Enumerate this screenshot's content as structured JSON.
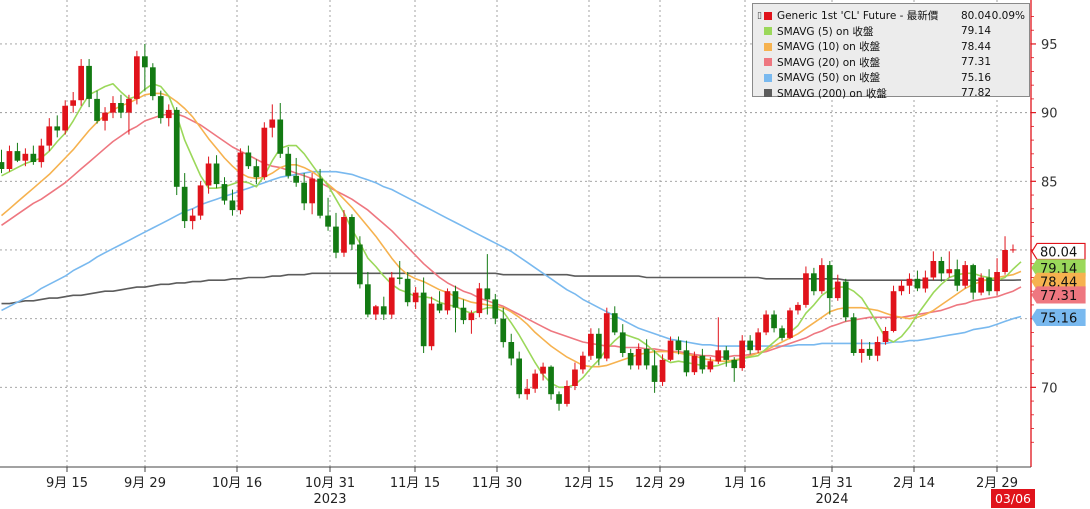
{
  "chart_data": {
    "type": "candlestick",
    "x_tick_labels": [
      "9月 15",
      "9月 29",
      "10月 16",
      "10月 31",
      "11月 15",
      "11月 30",
      "12月 15",
      "12月 29",
      "1月 16",
      "1月 31",
      "2月 14",
      "2月 29"
    ],
    "year_labels": [
      "2023",
      "2024"
    ],
    "date_badge": "03/06",
    "y_ticks": [
      70,
      75,
      80,
      85,
      90,
      95
    ],
    "y_tick_labels": [
      "70",
      "75",
      "80",
      "85",
      "90",
      "95"
    ],
    "ylim": [
      64.2,
      98.2
    ],
    "grid": true,
    "legend_position": "top-right",
    "colors": {
      "up": "#e0131b",
      "down": "#137a13",
      "sma5": "#9bd85a",
      "sma10": "#f6b24f",
      "sma20": "#ee7780",
      "sma50": "#79b9ef",
      "sma200": "#5c5c5c",
      "axis": "#e0131b",
      "grid": "#9a9a9a"
    },
    "legend": [
      {
        "name": "Generic 1st 'CL' Future - 最新價",
        "value": "80.04",
        "change": "0.09%",
        "color": "#e0131b"
      },
      {
        "name": "SMAVG (5)  on 收盤",
        "value": "79.14",
        "change": "",
        "color": "#9bd85a"
      },
      {
        "name": "SMAVG (10)  on 收盤",
        "value": "78.44",
        "change": "",
        "color": "#f6b24f"
      },
      {
        "name": "SMAVG (20)  on 收盤",
        "value": "77.31",
        "change": "",
        "color": "#ee7780"
      },
      {
        "name": "SMAVG (50)  on 收盤",
        "value": "75.16",
        "change": "",
        "color": "#79b9ef"
      },
      {
        "name": "SMAVG (200)  on 收盤",
        "value": "77.82",
        "change": "",
        "color": "#5c5c5c"
      }
    ],
    "price_tags": [
      {
        "label": "80.04",
        "value": 80.04,
        "style": "outline-red"
      },
      {
        "label": "79.14",
        "value": 79.14,
        "style": "green"
      },
      {
        "label": "78.44",
        "value": 78.44,
        "style": "orange"
      },
      {
        "label": "77.31",
        "value": 77.31,
        "style": "pink"
      },
      {
        "label": "75.16",
        "value": 75.16,
        "style": "blue"
      }
    ],
    "candles": [
      [
        86.4,
        87.3,
        85.6,
        85.9
      ],
      [
        85.9,
        87.6,
        85.7,
        87.2
      ],
      [
        87.2,
        87.8,
        86.4,
        86.5
      ],
      [
        86.5,
        87.4,
        86.1,
        87.0
      ],
      [
        87.0,
        87.6,
        86.2,
        86.4
      ],
      [
        86.4,
        88.1,
        86.0,
        87.6
      ],
      [
        87.6,
        89.6,
        87.2,
        89.0
      ],
      [
        89.0,
        89.8,
        88.2,
        88.7
      ],
      [
        88.7,
        90.9,
        88.4,
        90.5
      ],
      [
        90.5,
        91.5,
        90.0,
        90.9
      ],
      [
        90.9,
        93.9,
        90.5,
        93.4
      ],
      [
        93.4,
        93.9,
        90.4,
        91.0
      ],
      [
        91.0,
        91.6,
        89.2,
        89.4
      ],
      [
        89.4,
        90.4,
        88.7,
        90.0
      ],
      [
        90.0,
        91.2,
        89.6,
        90.7
      ],
      [
        90.7,
        91.3,
        89.6,
        90.0
      ],
      [
        90.0,
        91.3,
        88.4,
        91.0
      ],
      [
        91.0,
        94.5,
        90.6,
        94.1
      ],
      [
        94.1,
        95.0,
        91.6,
        93.3
      ],
      [
        93.3,
        93.6,
        90.9,
        91.2
      ],
      [
        91.2,
        91.6,
        89.2,
        89.6
      ],
      [
        89.6,
        90.6,
        89.0,
        90.2
      ],
      [
        90.2,
        90.4,
        84.0,
        84.6
      ],
      [
        84.6,
        85.6,
        81.6,
        82.1
      ],
      [
        82.1,
        83.0,
        81.5,
        82.5
      ],
      [
        82.5,
        85.0,
        82.2,
        84.7
      ],
      [
        84.7,
        86.8,
        84.1,
        86.3
      ],
      [
        86.3,
        86.9,
        84.5,
        84.8
      ],
      [
        84.8,
        85.3,
        83.3,
        83.6
      ],
      [
        83.6,
        84.4,
        82.5,
        82.9
      ],
      [
        82.9,
        87.4,
        82.6,
        87.1
      ],
      [
        87.1,
        87.6,
        85.9,
        86.1
      ],
      [
        86.1,
        86.6,
        84.8,
        85.3
      ],
      [
        85.3,
        89.3,
        85.1,
        88.9
      ],
      [
        88.9,
        90.6,
        88.2,
        89.5
      ],
      [
        89.5,
        90.7,
        86.7,
        87.0
      ],
      [
        87.0,
        87.5,
        85.2,
        85.4
      ],
      [
        85.4,
        86.7,
        84.6,
        84.9
      ],
      [
        84.9,
        85.6,
        82.9,
        83.4
      ],
      [
        83.4,
        85.6,
        82.6,
        85.2
      ],
      [
        85.2,
        85.9,
        82.3,
        82.5
      ],
      [
        82.5,
        83.8,
        81.4,
        81.7
      ],
      [
        81.7,
        82.7,
        79.4,
        79.8
      ],
      [
        79.8,
        82.9,
        79.5,
        82.4
      ],
      [
        82.4,
        82.6,
        80.0,
        80.4
      ],
      [
        80.4,
        81.0,
        77.2,
        77.5
      ],
      [
        77.5,
        78.4,
        75.1,
        75.3
      ],
      [
        75.3,
        76.0,
        74.9,
        75.9
      ],
      [
        75.9,
        76.6,
        74.9,
        75.3
      ],
      [
        75.3,
        78.4,
        75.0,
        78.0
      ],
      [
        78.0,
        79.2,
        77.5,
        77.9
      ],
      [
        77.9,
        78.4,
        75.9,
        76.2
      ],
      [
        76.2,
        77.3,
        75.7,
        76.9
      ],
      [
        76.9,
        78.0,
        72.5,
        73.0
      ],
      [
        73.0,
        76.6,
        72.7,
        76.1
      ],
      [
        76.1,
        77.0,
        75.4,
        75.6
      ],
      [
        75.6,
        77.2,
        75.3,
        77.0
      ],
      [
        77.0,
        77.4,
        74.0,
        75.8
      ],
      [
        75.8,
        76.4,
        74.6,
        74.9
      ],
      [
        74.9,
        75.6,
        73.9,
        75.4
      ],
      [
        75.4,
        77.6,
        75.1,
        77.2
      ],
      [
        77.2,
        79.7,
        75.3,
        76.4
      ],
      [
        76.4,
        76.8,
        74.6,
        75.0
      ],
      [
        75.0,
        75.8,
        72.9,
        73.3
      ],
      [
        73.3,
        73.9,
        71.6,
        72.1
      ],
      [
        72.1,
        72.6,
        69.2,
        69.5
      ],
      [
        69.5,
        70.6,
        69.1,
        69.9
      ],
      [
        69.9,
        71.3,
        69.6,
        71.0
      ],
      [
        71.0,
        71.8,
        70.5,
        71.5
      ],
      [
        71.5,
        71.6,
        69.1,
        69.5
      ],
      [
        69.5,
        69.7,
        68.3,
        68.8
      ],
      [
        68.8,
        70.5,
        68.6,
        70.1
      ],
      [
        70.1,
        71.8,
        69.8,
        71.3
      ],
      [
        71.3,
        72.6,
        71.0,
        72.3
      ],
      [
        72.3,
        74.3,
        72.0,
        73.9
      ],
      [
        73.9,
        74.3,
        71.6,
        72.1
      ],
      [
        72.1,
        75.8,
        71.9,
        75.4
      ],
      [
        75.4,
        75.9,
        73.8,
        74.0
      ],
      [
        74.0,
        74.6,
        72.2,
        72.5
      ],
      [
        72.5,
        72.8,
        71.3,
        71.6
      ],
      [
        71.6,
        73.2,
        71.3,
        72.8
      ],
      [
        72.8,
        73.5,
        71.3,
        71.6
      ],
      [
        71.6,
        72.7,
        69.6,
        70.4
      ],
      [
        70.4,
        72.4,
        70.1,
        72.0
      ],
      [
        72.0,
        73.7,
        71.9,
        73.4
      ],
      [
        73.4,
        73.7,
        72.4,
        72.7
      ],
      [
        72.7,
        73.4,
        70.8,
        71.1
      ],
      [
        71.1,
        72.6,
        70.9,
        72.3
      ],
      [
        72.3,
        72.8,
        71.0,
        71.3
      ],
      [
        71.3,
        72.2,
        71.1,
        71.9
      ],
      [
        71.9,
        75.1,
        71.7,
        72.7
      ],
      [
        72.7,
        73.0,
        71.5,
        72.0
      ],
      [
        72.0,
        72.2,
        70.4,
        71.4
      ],
      [
        71.4,
        73.8,
        71.2,
        73.4
      ],
      [
        73.4,
        73.8,
        72.4,
        72.7
      ],
      [
        72.7,
        74.3,
        72.5,
        74.0
      ],
      [
        74.0,
        75.6,
        73.8,
        75.3
      ],
      [
        75.3,
        75.6,
        74.0,
        74.3
      ],
      [
        74.3,
        74.5,
        73.4,
        73.6
      ],
      [
        73.6,
        75.8,
        73.5,
        75.6
      ],
      [
        75.6,
        76.2,
        75.3,
        76.0
      ],
      [
        76.0,
        78.8,
        75.8,
        78.3
      ],
      [
        78.3,
        78.7,
        76.7,
        77.0
      ],
      [
        77.0,
        79.4,
        76.8,
        78.9
      ],
      [
        78.9,
        79.2,
        75.3,
        76.5
      ],
      [
        76.5,
        78.2,
        76.3,
        77.7
      ],
      [
        77.7,
        77.9,
        74.8,
        75.1
      ],
      [
        75.1,
        75.4,
        72.3,
        72.5
      ],
      [
        72.5,
        73.5,
        71.8,
        72.8
      ],
      [
        72.8,
        73.3,
        72.0,
        72.3
      ],
      [
        72.3,
        73.7,
        71.9,
        73.3
      ],
      [
        73.3,
        74.4,
        73.1,
        74.1
      ],
      [
        74.1,
        77.4,
        74.0,
        77.0
      ],
      [
        77.0,
        77.8,
        76.7,
        77.4
      ],
      [
        77.4,
        78.3,
        76.8,
        77.9
      ],
      [
        77.9,
        78.5,
        77.0,
        77.2
      ],
      [
        77.2,
        78.5,
        76.9,
        78.0
      ],
      [
        78.0,
        79.9,
        77.8,
        79.2
      ],
      [
        79.2,
        79.5,
        77.7,
        78.3
      ],
      [
        78.3,
        79.9,
        78.0,
        78.6
      ],
      [
        78.6,
        79.3,
        77.0,
        77.4
      ],
      [
        77.4,
        79.2,
        77.2,
        78.9
      ],
      [
        78.9,
        79.0,
        76.4,
        76.9
      ],
      [
        76.9,
        78.3,
        76.7,
        78.0
      ],
      [
        78.0,
        78.6,
        76.7,
        77.0
      ],
      [
        77.0,
        79.4,
        76.7,
        78.4
      ],
      [
        78.4,
        81.0,
        78.2,
        80.0
      ],
      [
        80.0,
        80.4,
        79.8,
        80.04
      ]
    ],
    "sma5": [
      85.4,
      85.7,
      86.0,
      86.3,
      86.5,
      86.7,
      87.2,
      87.9,
      88.5,
      89.4,
      90.4,
      91.3,
      91.6,
      91.9,
      92.1,
      91.5,
      91.0,
      91.2,
      91.7,
      92.1,
      91.9,
      91.2,
      89.8,
      88.0,
      86.7,
      85.4,
      84.5,
      84.5,
      84.6,
      84.8,
      85.0,
      84.9,
      84.6,
      85.4,
      86.5,
      87.4,
      87.6,
      87.6,
      87.0,
      86.2,
      85.4,
      84.7,
      83.7,
      82.7,
      81.5,
      80.5,
      79.4,
      78.8,
      78.1,
      77.5,
      77.1,
      76.9,
      76.6,
      76.6,
      76.5,
      76.2,
      76.0,
      75.9,
      75.6,
      75.4,
      75.6,
      75.8,
      75.8,
      75.5,
      74.7,
      73.8,
      72.8,
      71.8,
      70.9,
      70.3,
      70.0,
      70.0,
      70.2,
      70.7,
      71.4,
      72.0,
      72.8,
      73.4,
      73.9,
      73.7,
      73.5,
      73.1,
      72.6,
      72.1,
      71.8,
      71.9,
      71.8,
      71.7,
      71.6,
      71.5,
      71.6,
      71.8,
      71.9,
      72.1,
      72.2,
      72.3,
      72.8,
      73.3,
      73.8,
      74.0,
      74.5,
      75.4,
      76.0,
      76.7,
      77.1,
      77.3,
      77.3,
      77.0,
      76.5,
      75.6,
      74.6,
      73.6,
      73.3,
      73.7,
      74.4,
      75.3,
      76.1,
      76.9,
      77.5,
      78.0,
      78.2,
      78.3,
      78.3,
      78.1,
      78.0,
      77.8,
      78.0,
      78.6,
      79.14
    ],
    "sma10": [
      82.5,
      83.0,
      83.5,
      84.0,
      84.5,
      85.0,
      85.5,
      86.1,
      86.7,
      87.3,
      88.0,
      88.7,
      89.3,
      89.8,
      90.2,
      90.5,
      90.7,
      91.0,
      91.3,
      91.4,
      91.4,
      91.2,
      90.8,
      90.3,
      89.7,
      88.9,
      88.1,
      87.4,
      86.7,
      86.1,
      85.6,
      85.3,
      85.2,
      85.3,
      85.6,
      86.0,
      86.2,
      86.2,
      86.0,
      85.7,
      85.3,
      84.8,
      84.3,
      83.7,
      83.1,
      82.4,
      81.7,
      81.0,
      80.2,
      79.4,
      78.7,
      78.2,
      77.9,
      77.7,
      77.4,
      77.1,
      76.9,
      76.6,
      76.4,
      76.2,
      76.1,
      76.0,
      75.9,
      75.8,
      75.5,
      75.1,
      74.6,
      74.0,
      73.5,
      73.0,
      72.6,
      72.2,
      71.9,
      71.6,
      71.5,
      71.5,
      71.6,
      71.8,
      72.0,
      72.2,
      72.4,
      72.5,
      72.6,
      72.6,
      72.6,
      72.5,
      72.4,
      72.3,
      72.1,
      72.0,
      71.9,
      71.9,
      72.0,
      72.1,
      72.3,
      72.5,
      72.7,
      73.0,
      73.3,
      73.6,
      73.9,
      74.3,
      74.7,
      75.1,
      75.5,
      75.7,
      75.8,
      75.8,
      75.8,
      75.7,
      75.6,
      75.4,
      75.2,
      75.1,
      75.0,
      75.1,
      75.3,
      75.6,
      76.0,
      76.4,
      76.8,
      77.2,
      77.5,
      77.7,
      77.9,
      78.0,
      78.1,
      78.2,
      78.44
    ],
    "sma20": [
      81.8,
      82.2,
      82.6,
      83.0,
      83.4,
      83.7,
      84.1,
      84.5,
      84.9,
      85.4,
      85.9,
      86.4,
      86.9,
      87.4,
      87.9,
      88.3,
      88.7,
      89.0,
      89.4,
      89.6,
      89.8,
      89.9,
      89.9,
      89.7,
      89.4,
      89.1,
      88.7,
      88.3,
      87.9,
      87.5,
      87.2,
      86.9,
      86.6,
      86.3,
      86.1,
      86.0,
      85.8,
      85.6,
      85.4,
      85.2,
      84.9,
      84.6,
      84.3,
      84.0,
      83.7,
      83.3,
      82.9,
      82.4,
      81.9,
      81.4,
      80.8,
      80.2,
      79.6,
      79.0,
      78.5,
      78.0,
      77.6,
      77.3,
      77.0,
      76.8,
      76.5,
      76.3,
      76.1,
      75.9,
      75.6,
      75.3,
      75.0,
      74.7,
      74.4,
      74.1,
      73.9,
      73.7,
      73.5,
      73.3,
      73.2,
      73.1,
      73.0,
      73.0,
      72.9,
      72.9,
      72.9,
      72.8,
      72.8,
      72.7,
      72.6,
      72.6,
      72.5,
      72.4,
      72.3,
      72.3,
      72.2,
      72.2,
      72.3,
      72.3,
      72.4,
      72.5,
      72.6,
      72.8,
      73.0,
      73.2,
      73.4,
      73.6,
      73.9,
      74.1,
      74.4,
      74.6,
      74.8,
      74.9,
      75.0,
      75.1,
      75.1,
      75.1,
      75.1,
      75.1,
      75.2,
      75.3,
      75.4,
      75.5,
      75.6,
      75.8,
      76.0,
      76.1,
      76.3,
      76.4,
      76.5,
      76.6,
      76.8,
      77.0,
      77.31
    ],
    "sma50": [
      75.6,
      75.9,
      76.2,
      76.5,
      76.8,
      77.2,
      77.5,
      77.8,
      78.1,
      78.5,
      78.8,
      79.1,
      79.5,
      79.8,
      80.1,
      80.4,
      80.7,
      81.0,
      81.3,
      81.6,
      81.9,
      82.2,
      82.5,
      82.8,
      83.0,
      83.3,
      83.5,
      83.7,
      83.9,
      84.1,
      84.3,
      84.5,
      84.7,
      84.9,
      85.1,
      85.3,
      85.4,
      85.5,
      85.6,
      85.7,
      85.7,
      85.7,
      85.7,
      85.6,
      85.5,
      85.3,
      85.1,
      84.9,
      84.6,
      84.4,
      84.1,
      83.8,
      83.5,
      83.2,
      82.9,
      82.6,
      82.3,
      82.0,
      81.7,
      81.4,
      81.1,
      80.8,
      80.5,
      80.2,
      79.9,
      79.5,
      79.1,
      78.7,
      78.3,
      77.9,
      77.5,
      77.1,
      76.8,
      76.4,
      76.1,
      75.8,
      75.5,
      75.2,
      74.9,
      74.6,
      74.3,
      74.1,
      73.9,
      73.7,
      73.5,
      73.4,
      73.3,
      73.2,
      73.1,
      73.1,
      73.0,
      73.0,
      73.0,
      73.0,
      73.0,
      73.0,
      73.0,
      73.0,
      73.0,
      73.0,
      73.1,
      73.1,
      73.1,
      73.2,
      73.2,
      73.2,
      73.2,
      73.2,
      73.2,
      73.2,
      73.2,
      73.2,
      73.3,
      73.3,
      73.4,
      73.4,
      73.5,
      73.6,
      73.7,
      73.8,
      73.9,
      74.0,
      74.2,
      74.3,
      74.4,
      74.6,
      74.8,
      75.0,
      75.16
    ],
    "sma200": [
      76.1,
      76.1,
      76.2,
      76.3,
      76.3,
      76.4,
      76.5,
      76.5,
      76.6,
      76.7,
      76.7,
      76.8,
      76.9,
      77.0,
      77.0,
      77.1,
      77.2,
      77.3,
      77.3,
      77.4,
      77.5,
      77.5,
      77.6,
      77.6,
      77.7,
      77.7,
      77.8,
      77.8,
      77.8,
      77.9,
      77.9,
      78.0,
      78.0,
      78.0,
      78.1,
      78.1,
      78.2,
      78.2,
      78.2,
      78.3,
      78.3,
      78.3,
      78.3,
      78.3,
      78.3,
      78.3,
      78.3,
      78.3,
      78.3,
      78.3,
      78.3,
      78.3,
      78.3,
      78.3,
      78.3,
      78.3,
      78.3,
      78.3,
      78.3,
      78.3,
      78.3,
      78.3,
      78.3,
      78.2,
      78.2,
      78.2,
      78.2,
      78.2,
      78.2,
      78.2,
      78.2,
      78.2,
      78.1,
      78.1,
      78.1,
      78.1,
      78.1,
      78.1,
      78.1,
      78.1,
      78.1,
      78.0,
      78.0,
      78.0,
      78.0,
      78.0,
      78.0,
      78.0,
      78.0,
      78.0,
      78.0,
      78.0,
      78.0,
      78.0,
      78.0,
      78.0,
      77.9,
      77.9,
      77.9,
      77.9,
      77.9,
      77.9,
      77.9,
      77.9,
      77.9,
      77.9,
      77.8,
      77.8,
      77.8,
      77.8,
      77.8,
      77.8,
      77.8,
      77.8,
      77.8,
      77.8,
      77.8,
      77.8,
      77.8,
      77.8,
      77.8,
      77.8,
      77.8,
      77.8,
      77.8,
      77.8,
      77.8,
      77.8,
      77.82
    ]
  }
}
